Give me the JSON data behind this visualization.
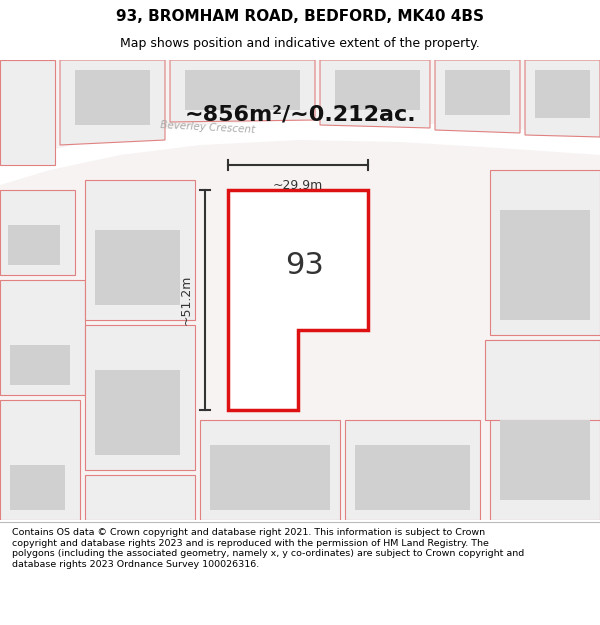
{
  "title_line1": "93, BROMHAM ROAD, BEDFORD, MK40 4BS",
  "title_line2": "Map shows position and indicative extent of the property.",
  "area_text": "~856m²/~0.212ac.",
  "label_93": "93",
  "dim_height": "~51.2m",
  "dim_width": "~29.9m",
  "road_label": "Beverley Crescent",
  "footer_text": "Contains OS data © Crown copyright and database right 2021. This information is subject to Crown copyright and database rights 2023 and is reproduced with the permission of HM Land Registry. The polygons (including the associated geometry, namely x, y co-ordinates) are subject to Crown copyright and database rights 2023 Ordnance Survey 100026316.",
  "bg_color": "#f5f0f0",
  "map_bg": "#f5f0f0",
  "road_color": "#ffffff",
  "plot_line_color": "#dd1111",
  "plot_fill_color": "#ffffff",
  "building_color": "#d8d8d8",
  "dim_line_color": "#333333",
  "title_color": "#000000",
  "footer_color": "#000000"
}
